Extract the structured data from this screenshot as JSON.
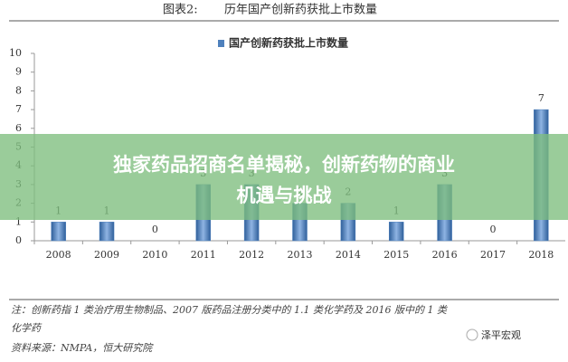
{
  "header": {
    "label": "图表2:",
    "title": "历年国产创新药获批上市数量"
  },
  "chart_data": {
    "type": "bar",
    "categories": [
      "2008",
      "2009",
      "2010",
      "2011",
      "2012",
      "2013",
      "2014",
      "2015",
      "2016",
      "2017",
      "2018"
    ],
    "series": [
      {
        "name": "国产创新药获批上市数量",
        "color": "#4f81bd",
        "values": [
          1,
          1,
          0,
          3,
          3,
          2,
          2,
          1,
          3,
          0,
          7
        ]
      }
    ],
    "ylim": [
      0,
      10
    ],
    "yticks": [
      0,
      1,
      2,
      3,
      4,
      5,
      6,
      7,
      8,
      9,
      10
    ]
  },
  "notes": [
    "注：创新药指 1 类治疗用生物制品、2007 版药品注册分类中的 1.1 类化学药及 2016 版中的 1 类",
    "化学药"
  ],
  "source": "资料来源：NMPA，恒大研究院",
  "watermark": "泽平宏观",
  "banner": [
    "独家药品招商名单揭秘，创新药物的商业",
    "机遇与挑战"
  ]
}
